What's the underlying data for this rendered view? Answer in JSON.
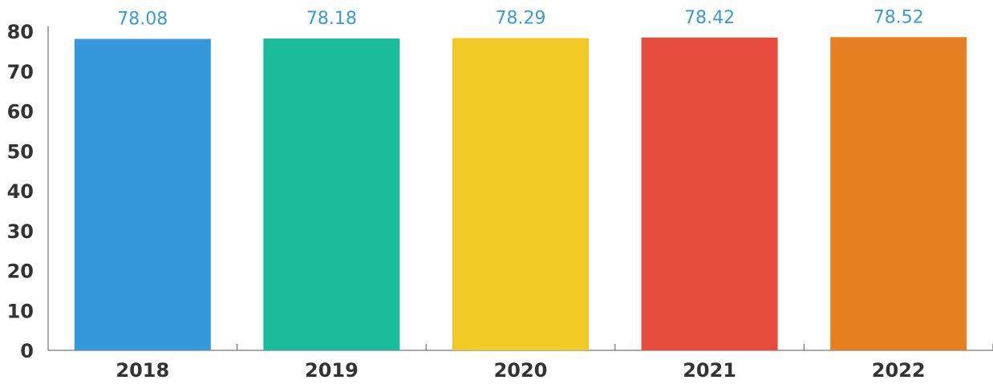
{
  "chart_data": {
    "type": "bar",
    "categories": [
      "2018",
      "2019",
      "2020",
      "2021",
      "2022"
    ],
    "values": [
      78.08,
      78.18,
      78.29,
      78.42,
      78.52
    ],
    "colors": [
      "#3498db",
      "#1abc9c",
      "#f1ca26",
      "#e74c3c",
      "#e67e22"
    ],
    "value_label_color": "#3a9ad9",
    "ylim": [
      0,
      80
    ],
    "yticks": [
      0,
      10,
      20,
      30,
      40,
      50,
      60,
      70,
      80
    ],
    "grid": false
  }
}
